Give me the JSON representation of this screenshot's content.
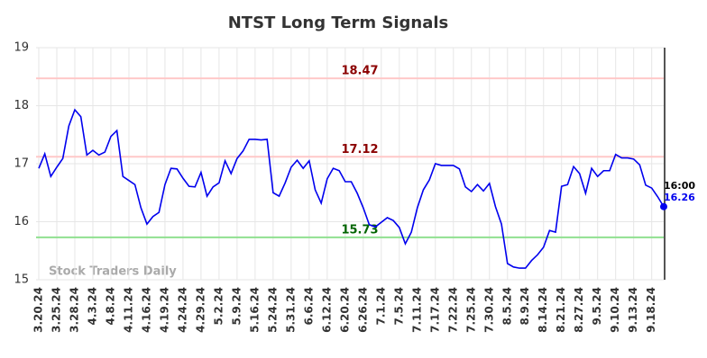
{
  "chart_data": {
    "type": "line",
    "title": "NTST Long Term Signals",
    "categories": [
      "3.20.24",
      null,
      null,
      "3.25.24",
      null,
      null,
      "3.28.24",
      null,
      null,
      "4.3.24",
      null,
      null,
      "4.8.24",
      null,
      null,
      "4.11.24",
      null,
      null,
      "4.16.24",
      null,
      null,
      "4.19.24",
      null,
      null,
      "4.24.24",
      null,
      null,
      "4.29.24",
      null,
      null,
      "5.2.24",
      null,
      null,
      "5.9.24",
      null,
      null,
      "5.16.24",
      null,
      null,
      "5.24.24",
      null,
      null,
      "5.31.24",
      null,
      null,
      "6.6.24",
      null,
      null,
      "6.12.24",
      null,
      null,
      "6.20.24",
      null,
      null,
      "6.26.24",
      null,
      null,
      "7.1.24",
      null,
      null,
      "7.5.24",
      null,
      null,
      "7.11.24",
      null,
      null,
      "7.17.24",
      null,
      null,
      "7.22.24",
      null,
      null,
      "7.25.24",
      null,
      null,
      "7.30.24",
      null,
      null,
      "8.5.24",
      null,
      null,
      "8.9.24",
      null,
      null,
      "8.14.24",
      null,
      null,
      "8.21.24",
      null,
      null,
      "8.27.24",
      null,
      null,
      "9.5.24",
      null,
      null,
      "9.10.24",
      null,
      null,
      "9.13.24",
      null,
      null,
      "9.18.24",
      null,
      null
    ],
    "values": [
      16.92,
      17.17,
      16.78,
      16.94,
      17.09,
      17.65,
      17.93,
      17.81,
      17.15,
      17.23,
      17.15,
      17.2,
      17.47,
      17.57,
      16.78,
      16.71,
      16.64,
      16.24,
      15.96,
      16.09,
      16.16,
      16.64,
      16.92,
      16.91,
      16.75,
      16.61,
      16.6,
      16.85,
      16.44,
      16.6,
      16.67,
      17.05,
      16.83,
      17.09,
      17.22,
      17.42,
      17.42,
      17.41,
      17.42,
      16.5,
      16.44,
      16.67,
      16.94,
      17.06,
      16.92,
      17.05,
      16.55,
      16.32,
      16.74,
      16.92,
      16.88,
      16.69,
      16.69,
      16.49,
      16.24,
      15.95,
      15.91,
      15.99,
      16.07,
      16.02,
      15.9,
      15.62,
      15.82,
      16.24,
      16.55,
      16.72,
      17.0,
      16.97,
      16.97,
      16.97,
      16.91,
      16.6,
      16.52,
      16.64,
      16.53,
      16.66,
      16.26,
      15.96,
      15.28,
      15.22,
      15.2,
      15.2,
      15.33,
      15.43,
      15.56,
      15.85,
      15.82,
      16.61,
      16.64,
      16.95,
      16.83,
      16.49,
      16.92,
      16.78,
      16.88,
      16.88,
      17.16,
      17.1,
      17.1,
      17.08,
      16.98,
      16.63,
      16.58,
      16.43,
      16.26
    ],
    "color": "#0000ee",
    "ylim": [
      15,
      19
    ],
    "yticks": [
      15,
      16,
      17,
      18,
      19
    ],
    "grid": true,
    "hlines": [
      {
        "value": 18.47,
        "color": "#ffc8c8",
        "label_color": "#8b0000"
      },
      {
        "value": 17.12,
        "color": "#ffc8c8",
        "label_color": "#8b0000"
      },
      {
        "value": 15.73,
        "color": "#90e090",
        "label_color": "#006400"
      }
    ],
    "last_time": "16:00",
    "watermark": "Stock Traders Daily"
  }
}
